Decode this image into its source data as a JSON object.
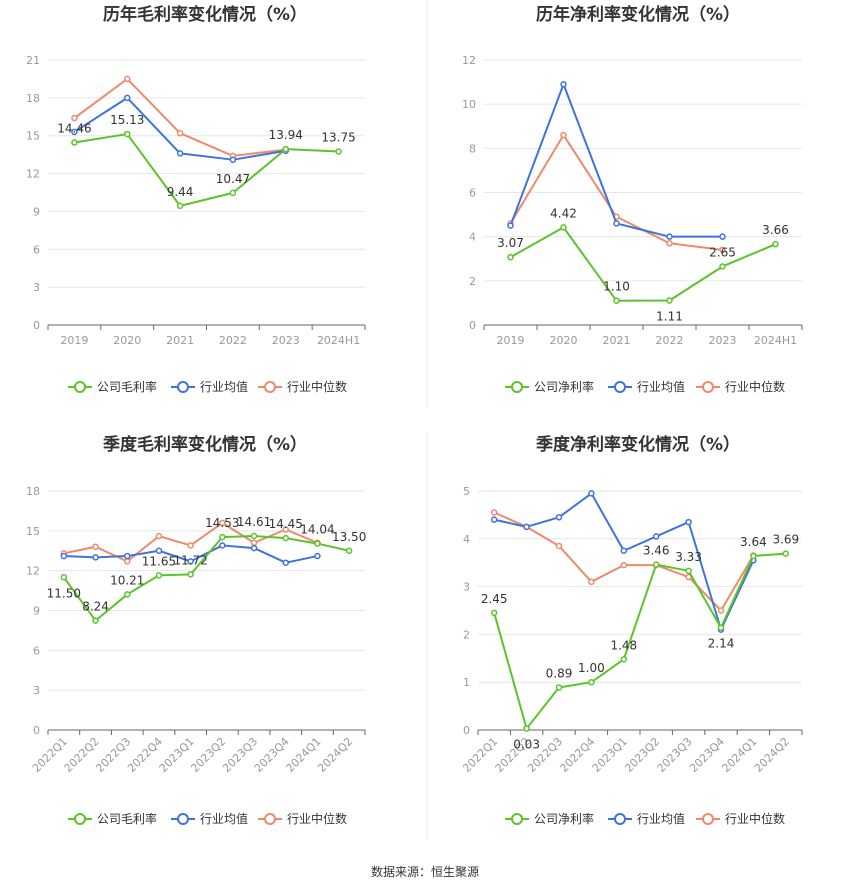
{
  "source": "数据来源：恒生聚源",
  "colors": {
    "company": "#5ac42a",
    "avg": "#3d74dc",
    "median": "#f0896a",
    "grid": "#e6e6e6",
    "axis": "#666666"
  },
  "chart_data": [
    {
      "type": "line",
      "title": "历年毛利率变化情况（%）",
      "categories": [
        "2019",
        "2020",
        "2021",
        "2022",
        "2023",
        "2024H1"
      ],
      "ylim": [
        0,
        21
      ],
      "yticks": [
        0,
        3,
        6,
        9,
        12,
        15,
        18,
        21
      ],
      "legend": "bottom",
      "grid": true,
      "series": [
        {
          "name": "公司毛利率",
          "key": "company",
          "values": [
            14.46,
            15.13,
            9.44,
            10.47,
            13.94,
            13.75
          ],
          "labels": [
            "14.46",
            "15.13",
            "9.44",
            "10.47",
            "13.94",
            "13.75"
          ]
        },
        {
          "name": "行业均值",
          "key": "avg",
          "values": [
            15.3,
            18.0,
            13.6,
            13.1,
            13.8,
            null
          ]
        },
        {
          "name": "行业中位数",
          "key": "median",
          "values": [
            16.4,
            19.5,
            15.2,
            13.4,
            13.9,
            null
          ]
        }
      ]
    },
    {
      "type": "line",
      "title": "历年净利率变化情况（%）",
      "categories": [
        "2019",
        "2020",
        "2021",
        "2022",
        "2023",
        "2024H1"
      ],
      "ylim": [
        0,
        12
      ],
      "yticks": [
        0,
        2,
        4,
        6,
        8,
        10,
        12
      ],
      "legend": "bottom",
      "grid": true,
      "series": [
        {
          "name": "公司净利率",
          "key": "company",
          "values": [
            3.07,
            4.42,
            1.1,
            1.11,
            2.65,
            3.66
          ],
          "labels": [
            "3.07",
            "4.42",
            "1.10",
            "1.11",
            "2.65",
            "3.66"
          ]
        },
        {
          "name": "行业均值",
          "key": "avg",
          "values": [
            4.5,
            10.9,
            4.6,
            4.0,
            4.0,
            null
          ]
        },
        {
          "name": "行业中位数",
          "key": "median",
          "values": [
            4.6,
            8.6,
            4.9,
            3.7,
            3.4,
            null
          ]
        }
      ]
    },
    {
      "type": "line",
      "title": "季度毛利率变化情况（%）",
      "categories": [
        "2022Q1",
        "2022Q2",
        "2022Q3",
        "2022Q4",
        "2023Q1",
        "2023Q2",
        "2023Q3",
        "2023Q4",
        "2024Q1",
        "2024Q2"
      ],
      "ylim": [
        0,
        18
      ],
      "yticks": [
        0,
        3,
        6,
        9,
        12,
        15,
        18
      ],
      "legend": "bottom",
      "grid": true,
      "series": [
        {
          "name": "公司毛利率",
          "key": "company",
          "values": [
            11.5,
            8.24,
            10.21,
            11.65,
            11.72,
            14.53,
            14.61,
            14.45,
            14.04,
            13.5
          ],
          "labels": [
            "11.50",
            "8.24",
            "10.21",
            "11.65",
            "11.72",
            "14.53",
            "14.61",
            "14.45",
            "14.04",
            "13.50"
          ]
        },
        {
          "name": "行业均值",
          "key": "avg",
          "values": [
            13.1,
            13.0,
            13.1,
            13.5,
            12.7,
            13.9,
            13.7,
            12.6,
            13.1,
            null
          ]
        },
        {
          "name": "行业中位数",
          "key": "median",
          "values": [
            13.3,
            13.8,
            12.7,
            14.6,
            13.9,
            15.6,
            14.1,
            15.1,
            14.1,
            null
          ]
        }
      ]
    },
    {
      "type": "line",
      "title": "季度净利率变化情况（%）",
      "categories": [
        "2022Q1",
        "2022Q2",
        "2022Q3",
        "2022Q4",
        "2023Q1",
        "2023Q2",
        "2023Q3",
        "2023Q4",
        "2024Q1",
        "2024Q2"
      ],
      "ylim": [
        0,
        5
      ],
      "yticks": [
        0,
        1,
        2,
        3,
        4,
        5
      ],
      "legend": "bottom",
      "grid": true,
      "series": [
        {
          "name": "公司净利率",
          "key": "company",
          "values": [
            2.45,
            0.03,
            0.89,
            1.0,
            1.48,
            3.46,
            3.33,
            2.14,
            3.64,
            3.69
          ],
          "labels": [
            "2.45",
            "0.03",
            "0.89",
            "1.00",
            "1.48",
            "3.46",
            "3.33",
            "2.14",
            "3.64",
            "3.69"
          ]
        },
        {
          "name": "行业均值",
          "key": "avg",
          "values": [
            4.4,
            4.25,
            4.45,
            4.95,
            3.75,
            4.05,
            4.35,
            2.1,
            3.55,
            null
          ]
        },
        {
          "name": "行业中位数",
          "key": "median",
          "values": [
            4.55,
            4.25,
            3.85,
            3.1,
            3.45,
            3.45,
            3.2,
            2.5,
            3.65,
            null
          ]
        }
      ]
    }
  ]
}
